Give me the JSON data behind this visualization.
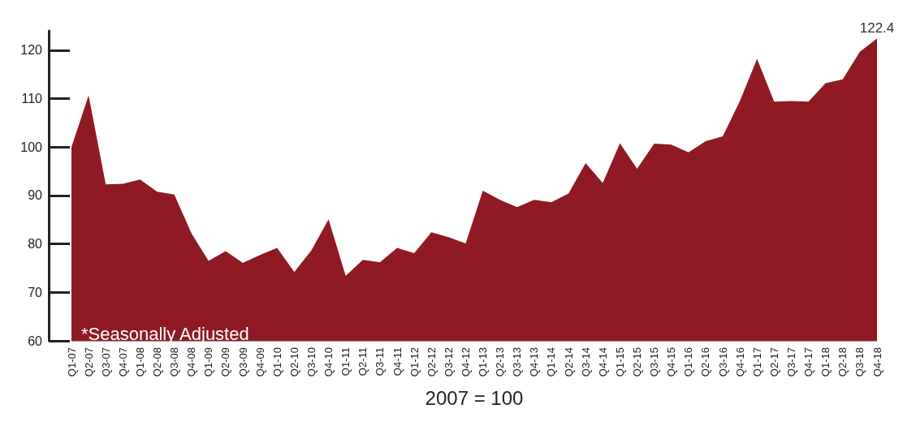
{
  "chart_data": {
    "type": "area",
    "xlabel": "2007 = 100",
    "annotations": [
      "*Seasonally Adjusted"
    ],
    "categories": [
      "Q1-07",
      "Q2-07",
      "Q3-07",
      "Q4-07",
      "Q1-08",
      "Q2-08",
      "Q3-08",
      "Q4-08",
      "Q1-09",
      "Q2-09",
      "Q3-09",
      "Q4-09",
      "Q1-10",
      "Q2-10",
      "Q3-10",
      "Q4-10",
      "Q1-11",
      "Q2-11",
      "Q3-11",
      "Q4-11",
      "Q1-12",
      "Q2-12",
      "Q3-12",
      "Q4-12",
      "Q1-13",
      "Q2-13",
      "Q3-13",
      "Q4-13",
      "Q1-14",
      "Q2-14",
      "Q3-14",
      "Q4-14",
      "Q1-15",
      "Q2-15",
      "Q3-15",
      "Q4-15",
      "Q1-16",
      "Q2-16",
      "Q3-16",
      "Q4-16",
      "Q1-17",
      "Q2-17",
      "Q3-17",
      "Q4-17",
      "Q1-18",
      "Q2-18",
      "Q3-18",
      "Q4-18"
    ],
    "series": [
      {
        "color": "#8f1a24",
        "values": [
          100,
          110.7,
          92.3,
          92.4,
          93.3,
          90.8,
          90.2,
          82.2,
          76.5,
          78.5,
          76.1,
          77.7,
          79.2,
          74.2,
          78.7,
          85.1,
          73.4,
          76.7,
          76.2,
          79.2,
          78.1,
          82.4,
          81.4,
          80.1,
          91.0,
          89.1,
          87.6,
          89.1,
          88.6,
          90.4,
          96.7,
          92.6,
          100.8,
          95.5,
          100.7,
          100.5,
          98.9,
          101.2,
          102.2,
          109.5,
          118.2,
          109.4,
          109.5,
          109.4,
          113.2,
          114.0,
          119.7,
          122.4
        ],
        "value_labels": [
          null,
          null,
          null,
          null,
          null,
          null,
          null,
          null,
          null,
          null,
          null,
          null,
          null,
          null,
          null,
          null,
          null,
          null,
          null,
          null,
          null,
          null,
          null,
          null,
          null,
          null,
          null,
          null,
          null,
          null,
          null,
          null,
          null,
          null,
          null,
          null,
          null,
          null,
          null,
          null,
          null,
          null,
          null,
          null,
          null,
          null,
          null,
          "122.4"
        ]
      }
    ],
    "ylim": [
      60,
      124
    ],
    "yticks": [
      60,
      70,
      80,
      90,
      100,
      110,
      120
    ],
    "grid": false
  }
}
